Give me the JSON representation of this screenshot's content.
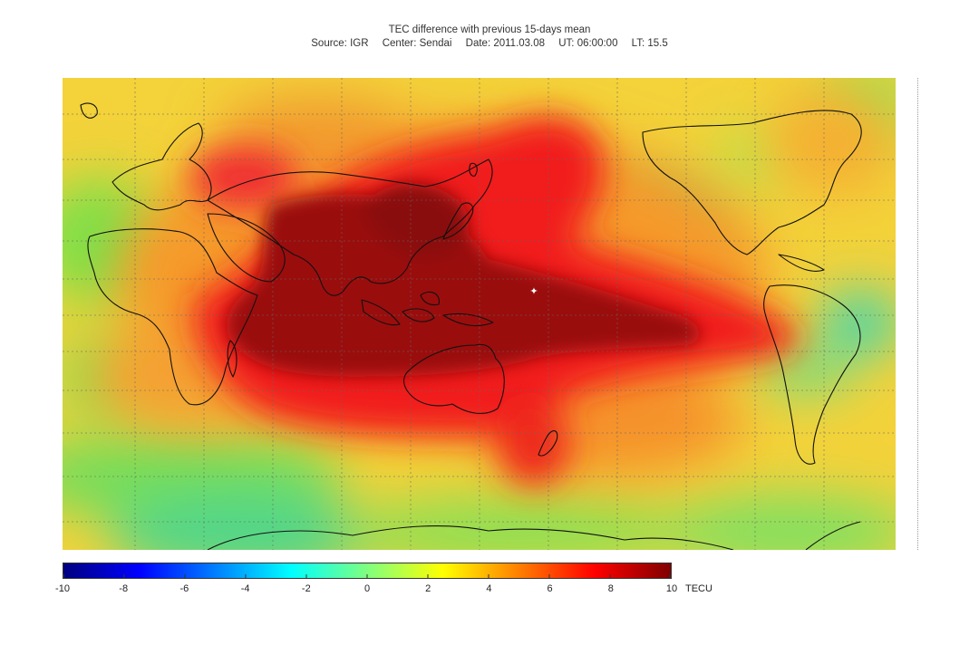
{
  "title": "TEC difference with previous 15-days mean",
  "subtitle": {
    "source": "Source: IGR",
    "center": "Center: Sendai",
    "date": "Date: 2011.03.08",
    "ut": "UT: 06:00:00",
    "lt": "LT: 15.5"
  },
  "colorbar": {
    "unit": "TECU",
    "min": -10,
    "max": 10,
    "ticks": [
      "-10",
      "-8",
      "-6",
      "-4",
      "-2",
      "0",
      "2",
      "4",
      "6",
      "8",
      "10"
    ],
    "colors": [
      "#00007f",
      "#0000ff",
      "#007fff",
      "#00ffff",
      "#7fff7f",
      "#ffff00",
      "#ff7f00",
      "#ff0000",
      "#7f0000"
    ]
  },
  "marker_icon": "star-marker-icon"
}
